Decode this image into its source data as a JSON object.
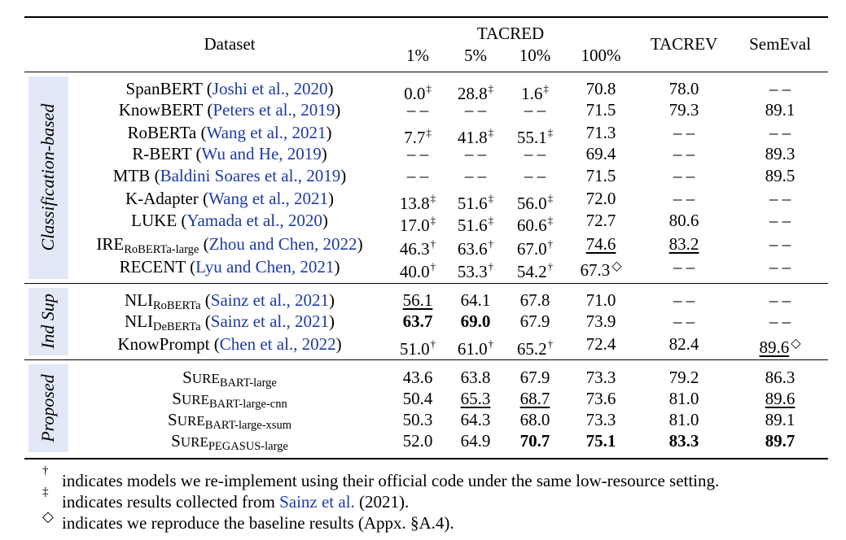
{
  "header": {
    "dataset": "Dataset",
    "tacred": "TACRED",
    "tacred_splits": [
      "1%",
      "5%",
      "10%",
      "100%"
    ],
    "tacrev": "TACREV",
    "semeval": "SemEval"
  },
  "groups": [
    {
      "label": "Classification-based",
      "rows": [
        {
          "model": "SpanBERT",
          "model_sub": "",
          "cite": "Joshi et al., 2020",
          "cells": [
            {
              "v": "0.0",
              "m": "‡"
            },
            {
              "v": "28.8",
              "m": "‡"
            },
            {
              "v": "1.6",
              "m": "‡"
            },
            {
              "v": "70.8"
            },
            {
              "v": "78.0"
            },
            {
              "v": "– –"
            }
          ]
        },
        {
          "model": "KnowBERT",
          "model_sub": "",
          "cite": "Peters et al., 2019",
          "cells": [
            {
              "v": "– –"
            },
            {
              "v": "– –"
            },
            {
              "v": "– –"
            },
            {
              "v": "71.5"
            },
            {
              "v": "79.3"
            },
            {
              "v": "89.1"
            }
          ]
        },
        {
          "model": "RoBERTa",
          "model_sub": "",
          "cite": "Wang et al., 2021",
          "cells": [
            {
              "v": "7.7",
              "m": "‡"
            },
            {
              "v": "41.8",
              "m": "‡"
            },
            {
              "v": "55.1",
              "m": "‡"
            },
            {
              "v": "71.3"
            },
            {
              "v": "– –"
            },
            {
              "v": "– –"
            }
          ]
        },
        {
          "model": "R-BERT",
          "model_sub": "",
          "cite": "Wu and He, 2019",
          "cells": [
            {
              "v": "– –"
            },
            {
              "v": "– –"
            },
            {
              "v": "– –"
            },
            {
              "v": "69.4"
            },
            {
              "v": "– –"
            },
            {
              "v": "89.3"
            }
          ]
        },
        {
          "model": "MTB",
          "model_sub": "",
          "cite": "Baldini Soares et al., 2019",
          "cells": [
            {
              "v": "– –"
            },
            {
              "v": "– –"
            },
            {
              "v": "– –"
            },
            {
              "v": "71.5"
            },
            {
              "v": "– –"
            },
            {
              "v": "89.5"
            }
          ]
        },
        {
          "model": "K-Adapter",
          "model_sub": "",
          "cite": "Wang et al., 2021",
          "cells": [
            {
              "v": "13.8",
              "m": "‡"
            },
            {
              "v": "51.6",
              "m": "‡"
            },
            {
              "v": "56.0",
              "m": "‡"
            },
            {
              "v": "72.0"
            },
            {
              "v": "– –"
            },
            {
              "v": "– –"
            }
          ]
        },
        {
          "model": "LUKE",
          "model_sub": "",
          "cite": "Yamada et al., 2020",
          "cells": [
            {
              "v": "17.0",
              "m": "‡"
            },
            {
              "v": "51.6",
              "m": "‡"
            },
            {
              "v": "60.6",
              "m": "‡"
            },
            {
              "v": "72.7"
            },
            {
              "v": "80.6"
            },
            {
              "v": "– –"
            }
          ]
        },
        {
          "model": "IRE",
          "model_sub": "RoBERTa-large",
          "cite": "Zhou and Chen, 2022",
          "cells": [
            {
              "v": "46.3",
              "m": "†"
            },
            {
              "v": "63.6",
              "m": "†"
            },
            {
              "v": "67.0",
              "m": "†"
            },
            {
              "v": "74.6",
              "u": true
            },
            {
              "v": "83.2",
              "u": true
            },
            {
              "v": "– –"
            }
          ]
        },
        {
          "model": "RECENT",
          "model_sub": "",
          "cite": "Lyu and Chen, 2021",
          "cells": [
            {
              "v": "40.0",
              "m": "†"
            },
            {
              "v": "53.3",
              "m": "†"
            },
            {
              "v": "54.2",
              "m": "†"
            },
            {
              "v": "67.3",
              "m": "◇"
            },
            {
              "v": "– –"
            },
            {
              "v": "– –"
            }
          ]
        }
      ]
    },
    {
      "label": "Ind Sup",
      "rows": [
        {
          "model": "NLI",
          "model_sub": "RoBERTa",
          "cite": "Sainz et al., 2021",
          "cells": [
            {
              "v": "56.1",
              "u": true
            },
            {
              "v": "64.1"
            },
            {
              "v": "67.8"
            },
            {
              "v": "71.0"
            },
            {
              "v": "– –"
            },
            {
              "v": "– –"
            }
          ]
        },
        {
          "model": "NLI",
          "model_sub": "DeBERTa",
          "cite": "Sainz et al., 2021",
          "cells": [
            {
              "v": "63.7",
              "b": true
            },
            {
              "v": "69.0",
              "b": true
            },
            {
              "v": "67.9"
            },
            {
              "v": "73.9"
            },
            {
              "v": "– –"
            },
            {
              "v": "– –"
            }
          ]
        },
        {
          "model": "KnowPrompt",
          "model_sub": "",
          "cite": "Chen et al., 2022",
          "cells": [
            {
              "v": "51.0",
              "m": "†"
            },
            {
              "v": "61.0",
              "m": "†"
            },
            {
              "v": "65.2",
              "m": "†"
            },
            {
              "v": "72.4"
            },
            {
              "v": "82.4"
            },
            {
              "v": "89.6",
              "m": "◇",
              "u": true
            }
          ]
        }
      ]
    },
    {
      "label": "Proposed",
      "rows": [
        {
          "model": "SURE",
          "model_sub": "BART-large",
          "cite": "",
          "cells": [
            {
              "v": "43.6"
            },
            {
              "v": "63.8"
            },
            {
              "v": "67.9"
            },
            {
              "v": "73.3"
            },
            {
              "v": "79.2"
            },
            {
              "v": "86.3"
            }
          ]
        },
        {
          "model": "SURE",
          "model_sub": "BART-large-cnn",
          "cite": "",
          "cells": [
            {
              "v": "50.4"
            },
            {
              "v": "65.3",
              "u": true
            },
            {
              "v": "68.7",
              "u": true
            },
            {
              "v": "73.6"
            },
            {
              "v": "81.0"
            },
            {
              "v": "89.6",
              "u": true
            }
          ]
        },
        {
          "model": "SURE",
          "model_sub": "BART-large-xsum",
          "cite": "",
          "cells": [
            {
              "v": "50.3"
            },
            {
              "v": "64.3"
            },
            {
              "v": "68.0"
            },
            {
              "v": "73.3"
            },
            {
              "v": "81.0"
            },
            {
              "v": "89.1"
            }
          ]
        },
        {
          "model": "SURE",
          "model_sub": "PEGASUS-large",
          "cite": "",
          "cells": [
            {
              "v": "52.0"
            },
            {
              "v": "64.9"
            },
            {
              "v": "70.7",
              "b": true
            },
            {
              "v": "75.1",
              "b": true
            },
            {
              "v": "83.3",
              "b": true
            },
            {
              "v": "89.7",
              "b": true
            }
          ]
        }
      ]
    }
  ],
  "footnotes": [
    {
      "symbol": "†",
      "text_before": "indicates models we re-implement using their official code under the same low-resource setting.",
      "link": "",
      "text_after": ""
    },
    {
      "symbol": "‡",
      "text_before": "indicates results collected from ",
      "link": "Sainz et al.",
      "text_after": " (2021)."
    },
    {
      "symbol": "◇",
      "text_before": "indicates we reproduce the baseline results (Appx. §A.4).",
      "link": "",
      "text_after": ""
    }
  ]
}
